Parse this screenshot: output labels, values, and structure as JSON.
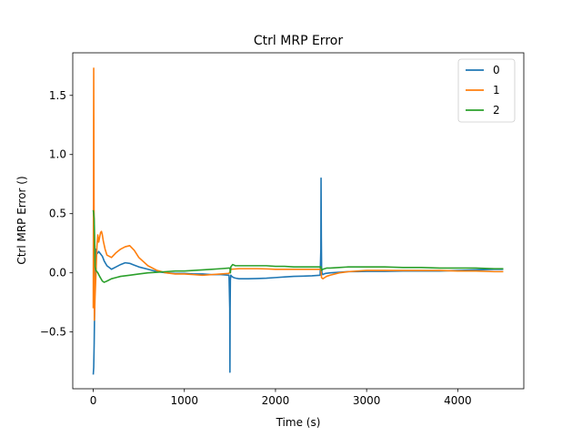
{
  "chart_data": {
    "type": "line",
    "title": "Ctrl MRP Error",
    "xlabel": "Time (s)",
    "ylabel": "Ctrl MRP Error ()",
    "xlim": [
      -225,
      4725
    ],
    "ylim": [
      -0.98,
      1.86
    ],
    "xticks": [
      0,
      1000,
      2000,
      3000,
      4000
    ],
    "yticks": [
      -0.5,
      0.0,
      0.5,
      1.0,
      1.5
    ],
    "xtick_labels": [
      "0",
      "1000",
      "2000",
      "3000",
      "4000"
    ],
    "ytick_labels": [
      "−0.5",
      "0.0",
      "0.5",
      "1.0",
      "1.5"
    ],
    "grid": false,
    "legend_position": "top-right",
    "series": [
      {
        "name": "0",
        "color": "#1f77b4",
        "x": [
          0,
          5,
          10,
          15,
          20,
          30,
          40,
          50,
          60,
          70,
          80,
          90,
          100,
          110,
          120,
          150,
          200,
          250,
          300,
          350,
          400,
          450,
          500,
          600,
          700,
          800,
          900,
          1000,
          1100,
          1200,
          1300,
          1400,
          1490,
          1498,
          1500,
          1502,
          1505,
          1510,
          1520,
          1540,
          1560,
          1600,
          1700,
          1800,
          1900,
          2000,
          2100,
          2200,
          2300,
          2400,
          2490,
          2498,
          2500,
          2503,
          2506,
          2510,
          2515,
          2520,
          2530,
          2550,
          2600,
          2700,
          2800,
          2900,
          3000,
          3200,
          3400,
          3600,
          3800,
          4000,
          4200,
          4400,
          4500
        ],
        "y": [
          -0.86,
          -0.8,
          -0.6,
          -0.3,
          0.05,
          0.2,
          0.16,
          0.17,
          0.18,
          0.17,
          0.16,
          0.15,
          0.14,
          0.12,
          0.1,
          0.06,
          0.03,
          0.05,
          0.07,
          0.085,
          0.08,
          0.065,
          0.05,
          0.03,
          0.01,
          0.0,
          -0.005,
          -0.005,
          -0.01,
          -0.01,
          -0.015,
          -0.015,
          -0.02,
          -0.3,
          -0.84,
          -0.3,
          -0.06,
          -0.02,
          -0.03,
          -0.04,
          -0.045,
          -0.05,
          -0.05,
          -0.048,
          -0.045,
          -0.04,
          -0.035,
          -0.03,
          -0.028,
          -0.025,
          -0.02,
          0.2,
          0.8,
          0.3,
          0.05,
          0.0,
          -0.01,
          -0.015,
          -0.01,
          -0.005,
          0.0,
          0.005,
          0.01,
          0.01,
          0.012,
          0.012,
          0.015,
          0.015,
          0.015,
          0.02,
          0.025,
          0.03,
          0.03
        ]
      },
      {
        "name": "1",
        "color": "#ff7f0e",
        "x": [
          0,
          3,
          5,
          8,
          12,
          20,
          30,
          40,
          50,
          60,
          70,
          80,
          90,
          100,
          110,
          130,
          150,
          200,
          250,
          300,
          350,
          400,
          450,
          500,
          600,
          700,
          800,
          900,
          1000,
          1100,
          1200,
          1300,
          1400,
          1490,
          1500,
          1510,
          1600,
          1700,
          1800,
          1900,
          2000,
          2100,
          2200,
          2300,
          2400,
          2490,
          2500,
          2505,
          2520,
          2540,
          2560,
          2600,
          2700,
          2800,
          3000,
          3200,
          3400,
          3600,
          3800,
          4000,
          4200,
          4400,
          4500
        ],
        "y": [
          -0.3,
          0.8,
          1.73,
          0.8,
          -0.4,
          -0.2,
          0.0,
          0.22,
          0.32,
          0.26,
          0.3,
          0.34,
          0.35,
          0.32,
          0.27,
          0.2,
          0.15,
          0.13,
          0.17,
          0.2,
          0.22,
          0.23,
          0.19,
          0.13,
          0.06,
          0.02,
          0.0,
          -0.01,
          -0.01,
          -0.015,
          -0.02,
          -0.015,
          -0.01,
          -0.005,
          0.01,
          0.03,
          0.035,
          0.035,
          0.035,
          0.033,
          0.03,
          0.03,
          0.03,
          0.03,
          0.03,
          0.03,
          0.02,
          -0.04,
          -0.05,
          -0.04,
          -0.03,
          -0.02,
          0.0,
          0.01,
          0.02,
          0.02,
          0.02,
          0.02,
          0.02,
          0.015,
          0.015,
          0.01,
          0.01
        ]
      },
      {
        "name": "2",
        "color": "#2ca02c",
        "x": [
          0,
          5,
          10,
          15,
          20,
          30,
          40,
          50,
          70,
          100,
          120,
          150,
          200,
          250,
          300,
          400,
          500,
          600,
          700,
          800,
          900,
          1000,
          1100,
          1200,
          1300,
          1400,
          1490,
          1500,
          1505,
          1510,
          1530,
          1560,
          1600,
          1700,
          1800,
          1900,
          2000,
          2100,
          2200,
          2300,
          2400,
          2490,
          2500,
          2505,
          2520,
          2560,
          2600,
          2700,
          2800,
          3000,
          3200,
          3400,
          3600,
          3800,
          4000,
          4200,
          4400,
          4500
        ],
        "y": [
          0.53,
          0.5,
          0.46,
          0.3,
          0.05,
          0.02,
          0.01,
          0.0,
          -0.03,
          -0.07,
          -0.08,
          -0.07,
          -0.05,
          -0.04,
          -0.03,
          -0.02,
          -0.01,
          0.0,
          0.005,
          0.01,
          0.015,
          0.015,
          0.02,
          0.025,
          0.03,
          0.035,
          0.04,
          0.04,
          0.0,
          0.05,
          0.07,
          0.06,
          0.06,
          0.06,
          0.06,
          0.06,
          0.055,
          0.055,
          0.05,
          0.05,
          0.05,
          0.05,
          0.05,
          0.02,
          0.03,
          0.04,
          0.04,
          0.045,
          0.05,
          0.05,
          0.05,
          0.045,
          0.045,
          0.04,
          0.04,
          0.04,
          0.035,
          0.035
        ]
      }
    ]
  }
}
